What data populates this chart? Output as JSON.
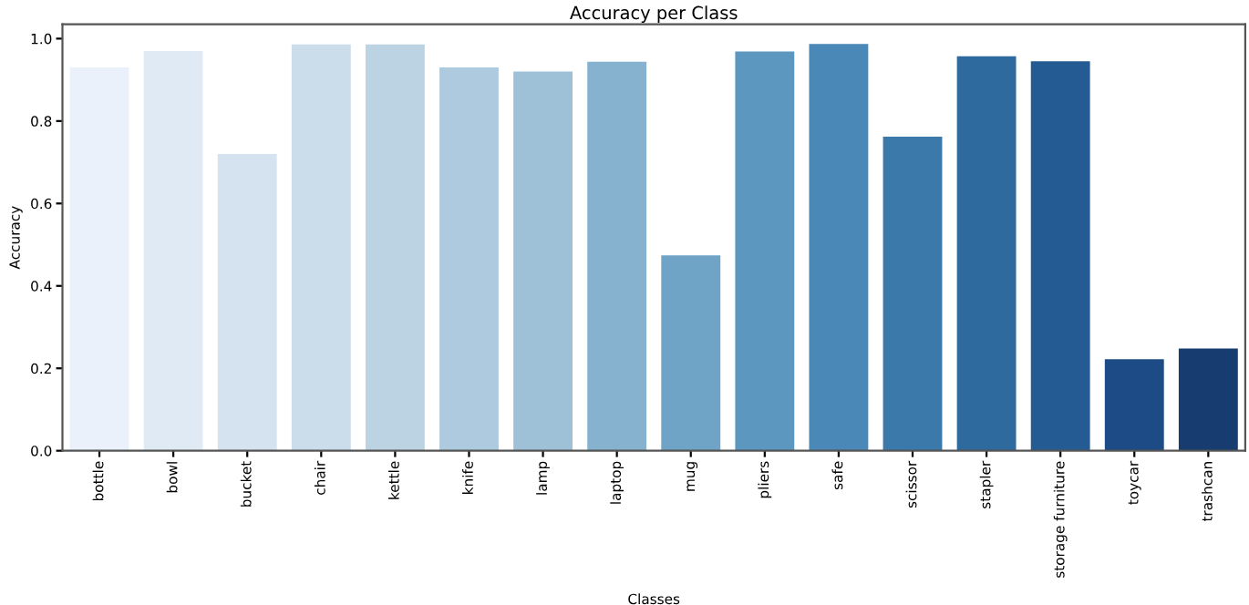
{
  "chart_data": {
    "type": "bar",
    "title": "Accuracy per Class",
    "xlabel": "Classes",
    "ylabel": "Accuracy",
    "categories": [
      "bottle",
      "bowl",
      "bucket",
      "chair",
      "kettle",
      "knife",
      "lamp",
      "laptop",
      "mug",
      "pliers",
      "safe",
      "scissor",
      "stapler",
      "storage furniture",
      "toycar",
      "trashcan"
    ],
    "values": [
      0.93,
      0.97,
      0.72,
      0.986,
      0.986,
      0.93,
      0.92,
      0.944,
      0.474,
      0.969,
      0.987,
      0.762,
      0.957,
      0.945,
      0.222,
      0.248
    ],
    "colors": [
      "#eaf1fa",
      "#e0eaf5",
      "#d5e2ef",
      "#cbdceb",
      "#bcd3e4",
      "#aecade",
      "#9ec1d7",
      "#86b2cf",
      "#6fa4c6",
      "#5c97bf",
      "#4a88b7",
      "#3b79ab",
      "#2f6a9f",
      "#245b92",
      "#1c4b85",
      "#173d70"
    ],
    "ylim": [
      0,
      1.035
    ],
    "yticks": [
      {
        "value": 0,
        "label": "0.0"
      },
      0.2,
      0.4,
      0.6,
      0.8,
      {
        "value": 1,
        "label": "1.0"
      }
    ],
    "grid": false
  }
}
